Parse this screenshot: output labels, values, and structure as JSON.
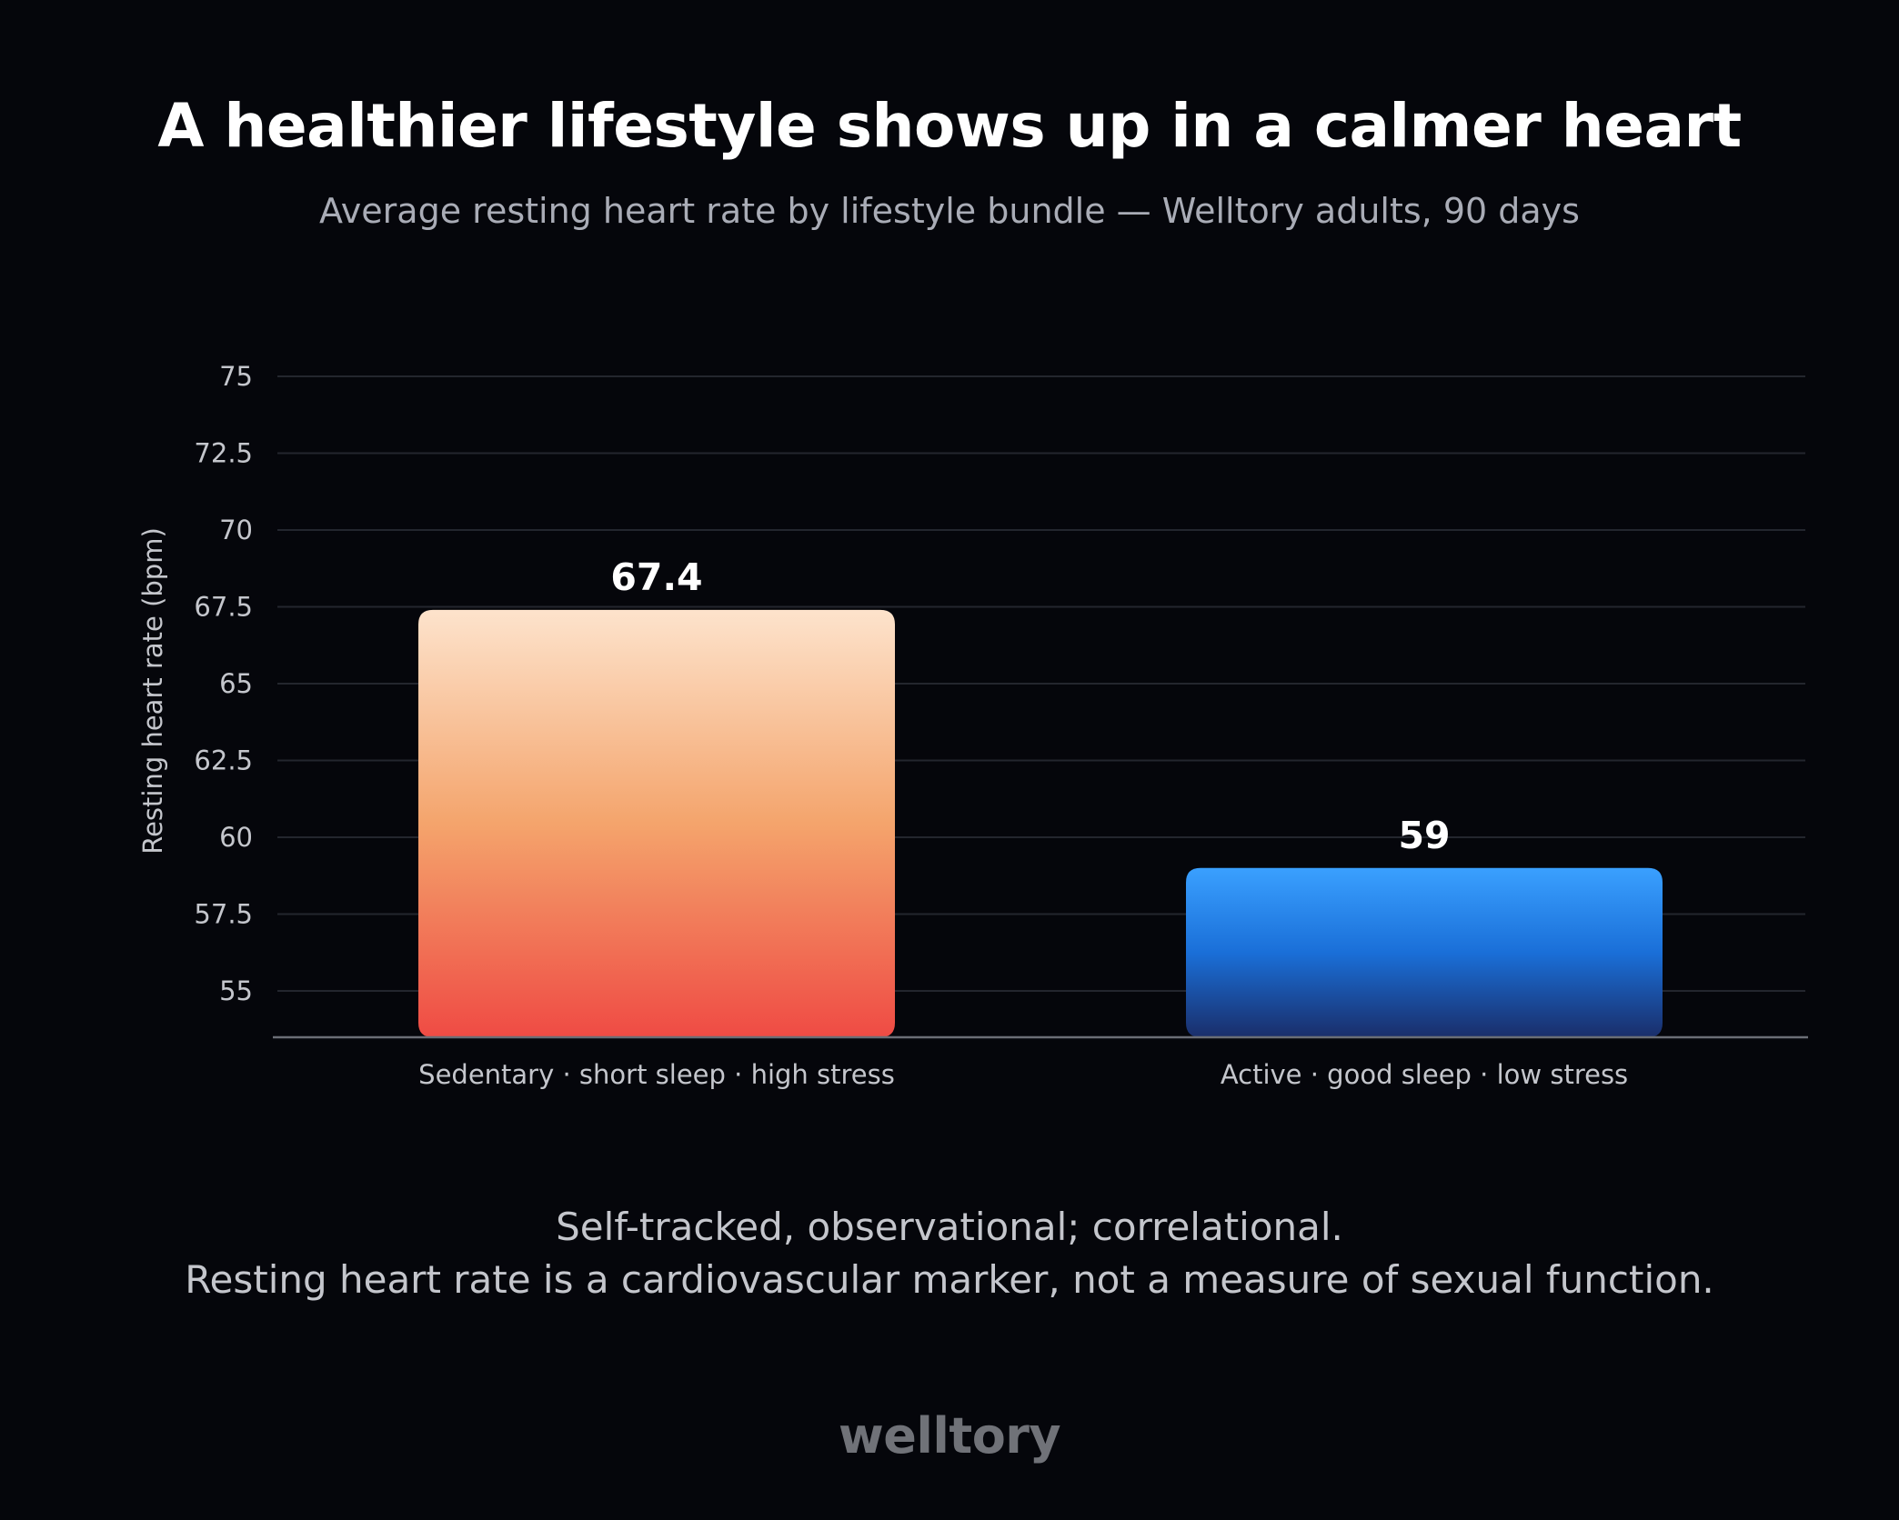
{
  "header": {
    "title": "A healthier lifestyle shows up in a calmer heart",
    "subtitle": "Average resting heart rate by lifestyle bundle — Welltory adults, 90 days"
  },
  "chart_data": {
    "type": "bar",
    "categories": [
      "Sedentary · short sleep · high stress",
      "Active · good sleep · low stress"
    ],
    "values": [
      67.4,
      59
    ],
    "value_labels": [
      "67.4",
      "59"
    ],
    "ylabel": "Resting heart rate (bpm)",
    "xlabel": "",
    "ylim": [
      53.5,
      75
    ],
    "yticks": [
      55,
      57.5,
      60,
      62.5,
      65,
      67.5,
      70,
      72.5,
      75
    ],
    "ytick_labels": [
      "55",
      "57.5",
      "60",
      "62.5",
      "65",
      "67.5",
      "70",
      "72.5",
      "75"
    ],
    "grid": true,
    "legend": "none",
    "bar_gradients": [
      [
        "#fde3cc",
        "#f4a46c",
        "#ef4b44"
      ],
      [
        "#3aa0ff",
        "#1a6fd8",
        "#1a2e6a"
      ]
    ]
  },
  "footer": {
    "note_line1": "Self-tracked, observational; correlational.",
    "note_line2": "Resting heart rate is a cardiovascular marker, not a measure of sexual function.",
    "brand": "welltory"
  },
  "colors": {
    "background": "#05060b",
    "grid": "#23262e",
    "axis": "#6b6e76",
    "tick_text": "#c4c6cc"
  }
}
